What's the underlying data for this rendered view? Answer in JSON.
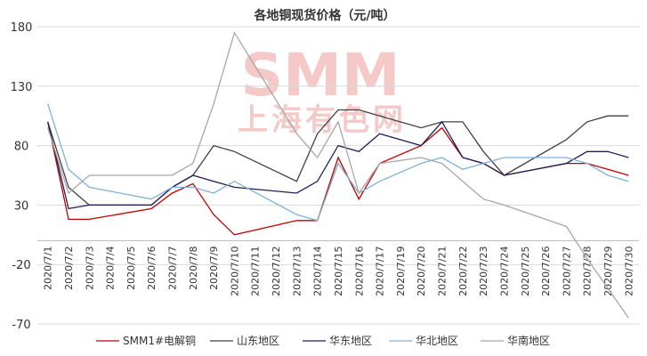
{
  "watermark": {
    "brand": "SMM",
    "name_cn": "上海有色网"
  },
  "colors": {
    "grid": "#d9d9d9",
    "axis": "#bfbfbf",
    "watermark": "#f4c9c7"
  },
  "chart_data": {
    "type": "line",
    "title": "各地铜现货价格（元/吨）",
    "xlabel": "",
    "ylabel": "",
    "ylim": [
      -70,
      180
    ],
    "yticks": [
      180,
      130,
      80,
      30,
      -20,
      -70
    ],
    "grid": "horizontal",
    "legend_position": "bottom",
    "categories": [
      "2020/7/1",
      "2020/7/2",
      "2020/7/3",
      "2020/7/4",
      "2020/7/5",
      "2020/7/6",
      "2020/7/7",
      "2020/7/8",
      "2020/7/9",
      "2020/7/10",
      "2020/7/11",
      "2020/7/12",
      "2020/7/13",
      "2020/7/14",
      "2020/7/15",
      "2020/7/16",
      "2020/7/17",
      "2020/7/19",
      "2020/7/20",
      "2020/7/21",
      "2020/7/22",
      "2020/7/23",
      "2020/7/24",
      "2020/7/25",
      "2020/7/26",
      "2020/7/27",
      "2020/7/28",
      "2020/7/29",
      "2020/7/30"
    ],
    "series": [
      {
        "name": "SMM1#电解铜",
        "color": "#c00000",
        "values": [
          100,
          18,
          18,
          null,
          null,
          27,
          40,
          48,
          22,
          5,
          null,
          null,
          17,
          17,
          70,
          35,
          65,
          null,
          80,
          95,
          70,
          65,
          55,
          null,
          null,
          65,
          65,
          60,
          55
        ]
      },
      {
        "name": "山东地区",
        "color": "#404040",
        "values": [
          100,
          45,
          30,
          null,
          null,
          30,
          45,
          55,
          80,
          75,
          null,
          null,
          50,
          90,
          110,
          110,
          105,
          null,
          95,
          100,
          100,
          75,
          55,
          null,
          null,
          85,
          100,
          105,
          105
        ]
      },
      {
        "name": "华东地区",
        "color": "#1f1f5a",
        "values": [
          100,
          27,
          30,
          null,
          null,
          30,
          45,
          55,
          50,
          45,
          null,
          null,
          40,
          50,
          80,
          75,
          90,
          null,
          80,
          100,
          70,
          65,
          55,
          null,
          null,
          65,
          75,
          75,
          70
        ]
      },
      {
        "name": "华北地区",
        "color": "#7fb2d9",
        "values": [
          115,
          60,
          45,
          null,
          null,
          35,
          45,
          45,
          40,
          50,
          null,
          null,
          22,
          17,
          65,
          40,
          50,
          null,
          65,
          70,
          60,
          65,
          70,
          null,
          null,
          70,
          65,
          55,
          50
        ]
      },
      {
        "name": "华南地区",
        "color": "#a6a6a6",
        "values": [
          95,
          40,
          55,
          null,
          null,
          55,
          55,
          65,
          115,
          175,
          null,
          null,
          90,
          70,
          100,
          40,
          65,
          null,
          70,
          65,
          50,
          35,
          30,
          null,
          null,
          12,
          -15,
          -40,
          -65
        ]
      }
    ]
  }
}
